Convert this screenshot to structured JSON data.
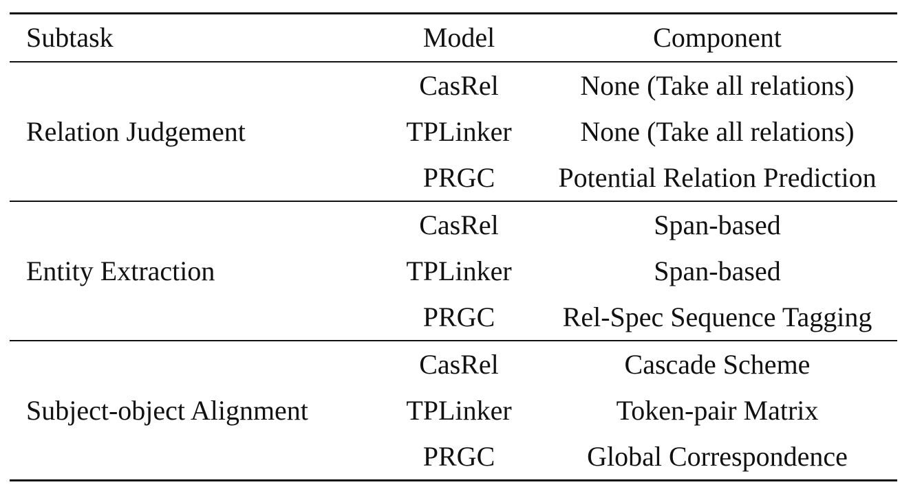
{
  "table": {
    "headers": {
      "subtask": "Subtask",
      "model": "Model",
      "component": "Component"
    },
    "groups": [
      {
        "subtask": "Relation Judgement",
        "rows": [
          {
            "model": "CasRel",
            "component": "None (Take all relations)"
          },
          {
            "model": "TPLinker",
            "component": "None (Take all relations)"
          },
          {
            "model": "PRGC",
            "component": "Potential Relation Prediction"
          }
        ]
      },
      {
        "subtask": "Entity Extraction",
        "rows": [
          {
            "model": "CasRel",
            "component": "Span-based"
          },
          {
            "model": "TPLinker",
            "component": "Span-based"
          },
          {
            "model": "PRGC",
            "component": "Rel-Spec Sequence Tagging"
          }
        ]
      },
      {
        "subtask": "Subject-object Alignment",
        "rows": [
          {
            "model": "CasRel",
            "component": "Cascade Scheme"
          },
          {
            "model": "TPLinker",
            "component": "Token-pair Matrix"
          },
          {
            "model": "PRGC",
            "component": "Global Correspondence"
          }
        ]
      }
    ]
  }
}
